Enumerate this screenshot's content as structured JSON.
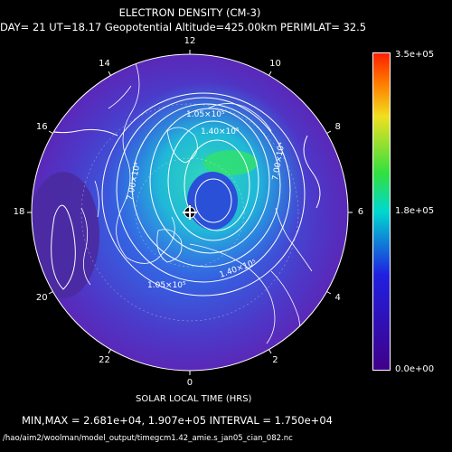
{
  "header": {
    "title": "ELECTRON DENSITY (CM-3)",
    "subtitle": "DAY= 21 UT=18.17 Geopotential Altitude=425.00km PERIMLAT= 32.5"
  },
  "map": {
    "projection": "polar",
    "local_time_labels": [
      "12",
      "10",
      "8",
      "6",
      "4",
      "2",
      "0",
      "22",
      "20",
      "18",
      "16",
      "14"
    ],
    "contour_labels": [
      {
        "id": "c1",
        "text": "1.05x10^5"
      },
      {
        "id": "c2",
        "text": "1.40x10^5"
      },
      {
        "id": "c3",
        "text": "7.00x10^4"
      },
      {
        "id": "c4",
        "text": "7.00x10^4"
      },
      {
        "id": "c5",
        "text": "1.40x10^5"
      },
      {
        "id": "c6",
        "text": "1.05x10^5"
      }
    ],
    "xlabel": "SOLAR LOCAL TIME (HRS)"
  },
  "colorbar": {
    "max_label": "3.5e+05",
    "mid_label": "1.8e+05",
    "min_label": "0.0e+00",
    "max_color": "#ff2000",
    "mid_color": "#00d8d0",
    "min_color": "#40008a"
  },
  "stats": {
    "minmax_line": "MIN,MAX =  2.681e+04, 1.907e+05 INTERVAL =  1.750e+04"
  },
  "footer": {
    "filepath": "/hao/aim2/woolman/model_output/timegcm1.42_amie.s_jan05_cian_082.nc"
  },
  "colors": {
    "disk_edge": "#5a28b8",
    "disk_mid": "#3a5ae0",
    "density_high": "#20c8d0"
  }
}
